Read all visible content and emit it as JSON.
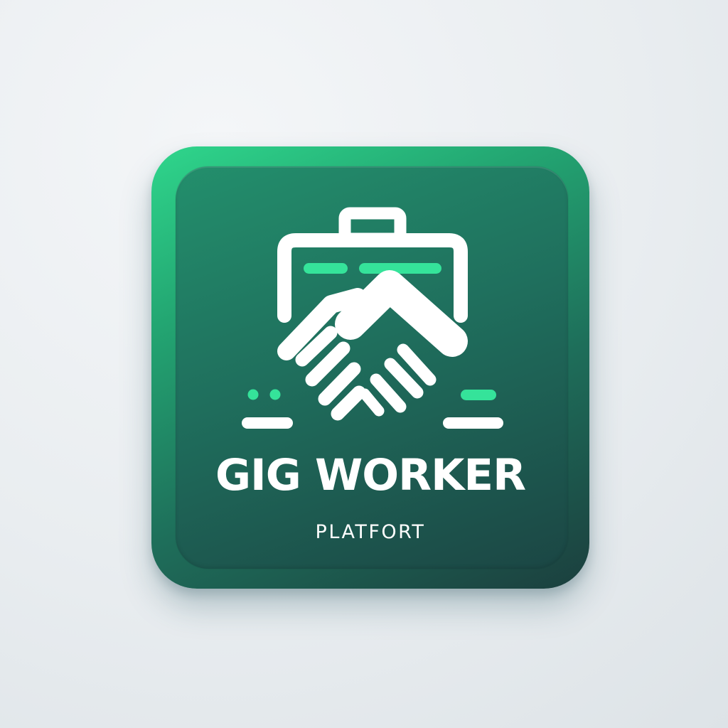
{
  "brand": {
    "title": "GIG WORKER",
    "subtitle": "PLATFORT"
  },
  "icons": {
    "main": "briefcase-handshake-icon"
  },
  "colors": {
    "background": "#e9edf0",
    "icon_gradient_top": "#2fd68c",
    "icon_gradient_bottom": "#1b3f3e",
    "accent": "#35e39a",
    "foreground": "#ffffff"
  }
}
